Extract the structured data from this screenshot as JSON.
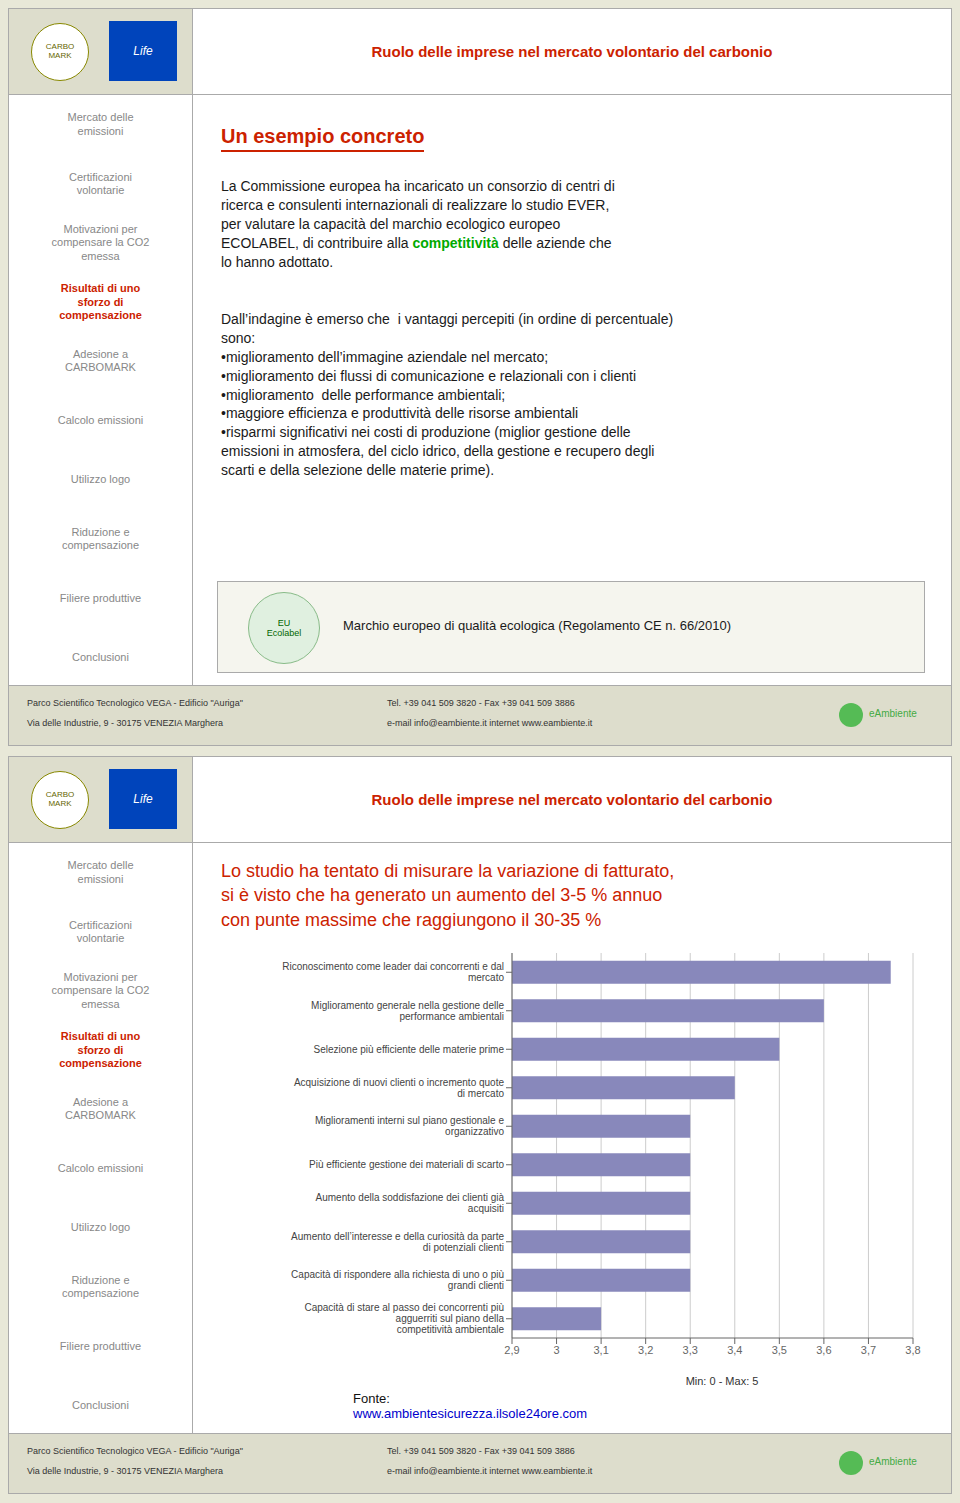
{
  "chart_data": {
    "type": "bar",
    "orientation": "horizontal",
    "categories": [
      "Riconoscimento come leader dai concorrenti e dal mercato",
      "Miglioramento generale nella gestione delle performance ambientali",
      "Selezione più efficiente delle materie prime",
      "Acquisizione di nuovi clienti o incremento quote di mercato",
      "Miglioramenti interni sul piano gestionale e organizzativo",
      "Più efficiente gestione dei materiali di scarto",
      "Aumento della soddisfazione dei clienti già acquisiti",
      "Aumento dell’interesse e della curiosità da parte di potenziali clienti",
      "Capacità di rispondere alla richiesta di uno o più grandi clienti",
      "Capacità di stare al passo dei concorrenti più agguerriti sul piano della\ncompetitività ambientale"
    ],
    "values": [
      3.75,
      3.6,
      3.5,
      3.4,
      3.3,
      3.3,
      3.3,
      3.3,
      3.3,
      3.1
    ],
    "color": "#8888bb",
    "xlim": [
      2.9,
      3.8
    ],
    "xticks": [
      {
        "value": 2.9,
        "label": "2,9"
      },
      3,
      {
        "value": 3.1,
        "label": "3,1"
      },
      {
        "value": 3.2,
        "label": "3,2"
      },
      {
        "value": 3.3,
        "label": "3,3"
      },
      {
        "value": 3.4,
        "label": "3,4"
      },
      {
        "value": 3.5,
        "label": "3,5"
      },
      {
        "value": 3.6,
        "label": "3,6"
      },
      {
        "value": 3.7,
        "label": "3,7"
      },
      {
        "value": 3.8,
        "label": "3,8"
      }
    ],
    "grid": true,
    "annotations": [
      "Ruolo delle imprese nel mercato volontario del carbonio",
      "CARBO\nMARK",
      "Life",
      "Mercato delle\nemissioni",
      "Certificazioni\nvolontarie",
      "Motivazioni per\ncompensare la CO2\nemessa",
      "Risultati di uno\nsforzo di\ncompensazione",
      "Adesione a\nCARBOMARK",
      "Calcolo emissioni",
      "Utilizzo logo",
      "Riduzione e\ncompensazione",
      "Filiere produttive",
      "Conclusioni",
      "Parco Scientifico Tecnologico VEGA - Edificio \"Auriga\"",
      "Via delle Industrie, 9 - 30175 VENEZIA Marghera",
      "Tel. +39 041 509 3820 - Fax +39 041 509 3886",
      "e-mail info@eambiente.it  internet www.eambiente.it",
      "eAmbiente",
      "Un esempio concreto",
      "La Commissione europea ha incaricato un consorzio di centri di\nricerca e consulenti internazionali di realizzare lo studio EVER,\nper valutare la capacità del marchio ecologico europeo\nECOLABEL, di contribuire alla ",
      "competitività",
      " delle aziende che",
      "lo hanno adottato.",
      "Dall’indagine è emerso che  i vantaggi percepiti (in ordine di percentuale)\nsono:\n•miglioramento dell’immagine aziendale nel mercato;\n•miglioramento dei flussi di comunicazione e relazionali con i clienti\n•miglioramento  delle performance ambientali;\n•maggiore efficienza e produttività delle risorse ambientali\n•risparmi significativi nei costi di produzione (miglior gestione delle\nemissioni in atmosfera, del ciclo idrico, della gestione e recupero degli\nscarti e della selezione delle materie prime).",
      "EU\nEcolabel",
      "Marchio europeo di qualità ecologica (Regolamento CE n. 66/2010)",
      "Lo studio ha tentato di misurare la variazione di fatturato,\nsi è visto che ha generato un aumento del 3-5 % annuo\ncon punte massime che raggiungono il 30-35 %",
      "Min: 0 - Max: 5",
      "Fonte:",
      "www.ambientesicurezza.ilsole24ore.com"
    ]
  }
}
